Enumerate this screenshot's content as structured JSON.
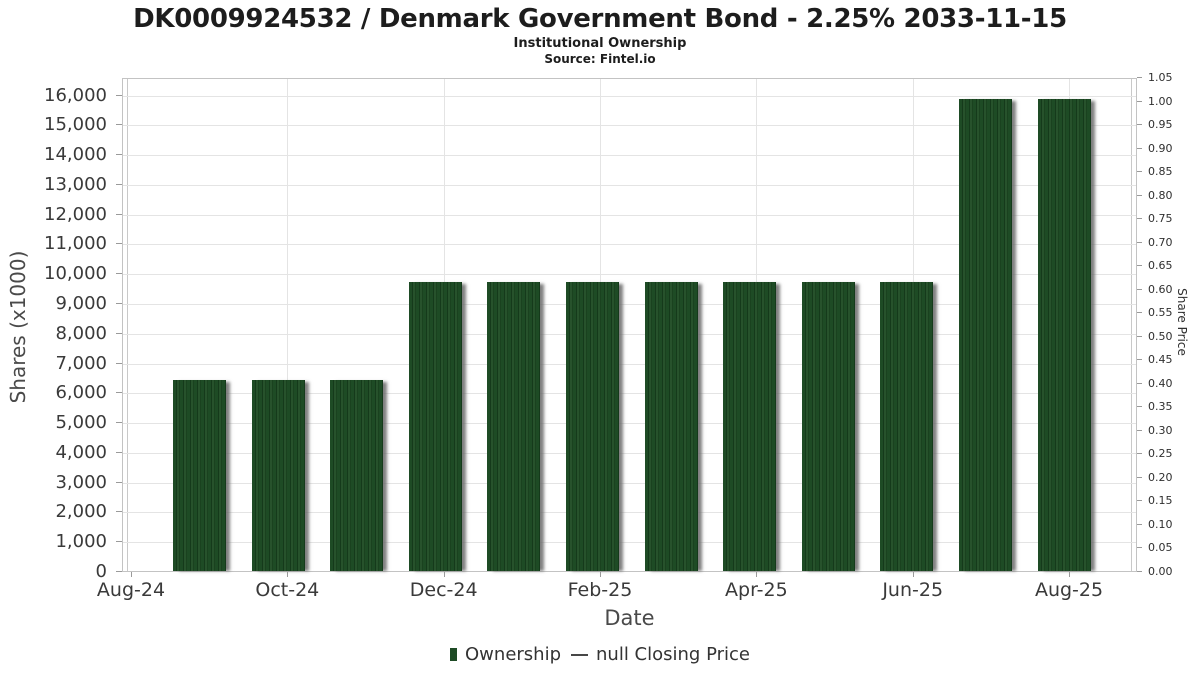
{
  "chart_data": {
    "type": "bar",
    "title": "DK0009924532 / Denmark Government Bond - 2.25% 2033-11-15",
    "subtitle": "Institutional Ownership",
    "source": "Source: Fintel.io",
    "xlabel": "Date",
    "ylabel_left": "Shares (x1000)",
    "ylabel_right": "Share Price",
    "grid": true,
    "legend_position": "bottom",
    "x_tick_labels": [
      "Aug-24",
      "Oct-24",
      "Dec-24",
      "Feb-25",
      "Apr-25",
      "Jun-25",
      "Aug-25"
    ],
    "y_left_axis": {
      "min": 0,
      "max_tick": 16000,
      "step": 1000,
      "axis_top_value": 16590
    },
    "y_left_tick_labels": [
      "0",
      "1,000",
      "2,000",
      "3,000",
      "4,000",
      "5,000",
      "6,000",
      "7,000",
      "8,000",
      "9,000",
      "10,000",
      "11,000",
      "12,000",
      "13,000",
      "14,000",
      "15,000",
      "16,000"
    ],
    "y_right_axis": {
      "min": 0.0,
      "max": 1.05,
      "step": 0.05
    },
    "y_right_tick_labels": [
      "0.00",
      "0.05",
      "0.10",
      "0.15",
      "0.20",
      "0.25",
      "0.30",
      "0.35",
      "0.40",
      "0.45",
      "0.50",
      "0.55",
      "0.60",
      "0.65",
      "0.70",
      "0.75",
      "0.80",
      "0.85",
      "0.90",
      "0.95",
      "1.00",
      "1.05"
    ],
    "categories": [
      "Sep-24",
      "Oct-24",
      "Nov-24",
      "Dec-24",
      "Jan-25",
      "Feb-25",
      "Mar-25",
      "Apr-25",
      "May-25",
      "Jun-25",
      "Jul-25",
      "Aug-25"
    ],
    "series": [
      {
        "name": "Ownership",
        "type": "bar",
        "color": "#1e4b25",
        "values_unit": "shares x1000",
        "values": [
          6400,
          6400,
          6400,
          9700,
          9700,
          9700,
          9700,
          9700,
          9700,
          9700,
          15850,
          15850
        ]
      },
      {
        "name": "null Closing Price",
        "type": "line",
        "color": "#474747",
        "values": []
      }
    ]
  },
  "colors": {
    "bar_green": "#1e4b25",
    "bar_stripe_dark": "#153a1b",
    "bar_shadow": "#9b9b9b",
    "gridline": "#e4e4e4",
    "plot_border": "#c3c3c3",
    "tick": "#9a9a9a",
    "text_dark": "#1d1d1d",
    "text_axis": "#3a3a3a"
  }
}
